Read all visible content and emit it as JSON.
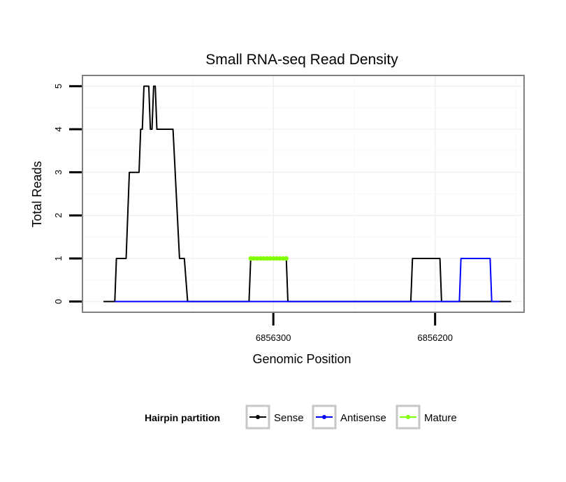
{
  "chart_data": {
    "type": "line",
    "title": "Small RNA-seq Read Density",
    "xlabel": "Genomic Position",
    "ylabel": "Total Reads",
    "x_reversed": true,
    "xlim": [
      6856418,
      6856145
    ],
    "ylim": [
      -0.25,
      5.25
    ],
    "x_ticks": [
      6856300,
      6856200
    ],
    "x_tick_labels": [
      "6856300",
      "6856200"
    ],
    "y_ticks": [
      0,
      1,
      2,
      3,
      4,
      5
    ],
    "y_tick_labels": [
      "0",
      "1",
      "2",
      "3",
      "4",
      "5"
    ],
    "grid": true,
    "legend": {
      "title": "Hairpin partition",
      "position": "bottom",
      "entries": [
        "Sense",
        "Antisense",
        "Mature"
      ]
    },
    "series": [
      {
        "name": "Sense",
        "color": "#000000",
        "points": [
          [
            6856405,
            0
          ],
          [
            6856398,
            0
          ],
          [
            6856397,
            1
          ],
          [
            6856391,
            1
          ],
          [
            6856389,
            3
          ],
          [
            6856383,
            3
          ],
          [
            6856382,
            4
          ],
          [
            6856381,
            4
          ],
          [
            6856380,
            5
          ],
          [
            6856377,
            5
          ],
          [
            6856376,
            4
          ],
          [
            6856375,
            4
          ],
          [
            6856374,
            5
          ],
          [
            6856373,
            5
          ],
          [
            6856372,
            4
          ],
          [
            6856362,
            4
          ],
          [
            6856358,
            1
          ],
          [
            6856355,
            1
          ],
          [
            6856353,
            0
          ],
          [
            6856315,
            0
          ],
          [
            6856314,
            1
          ],
          [
            6856292,
            1
          ],
          [
            6856291,
            0
          ],
          [
            6856215,
            0
          ],
          [
            6856214,
            1
          ],
          [
            6856197,
            1
          ],
          [
            6856196,
            0
          ],
          [
            6856153,
            0
          ]
        ]
      },
      {
        "name": "Antisense",
        "color": "#0000ff",
        "points": [
          [
            6856398,
            0
          ],
          [
            6856185,
            0
          ],
          [
            6856184,
            1
          ],
          [
            6856166,
            1
          ],
          [
            6856165,
            0
          ],
          [
            6856160,
            0
          ]
        ]
      },
      {
        "name": "Mature",
        "color": "#7fff00",
        "points": [
          [
            6856314,
            1
          ],
          [
            6856312,
            1
          ],
          [
            6856310,
            1
          ],
          [
            6856308,
            1
          ],
          [
            6856306,
            1
          ],
          [
            6856304,
            1
          ],
          [
            6856302,
            1
          ],
          [
            6856300,
            1
          ],
          [
            6856298,
            1
          ],
          [
            6856296,
            1
          ],
          [
            6856294,
            1
          ],
          [
            6856292,
            1
          ]
        ]
      }
    ]
  }
}
